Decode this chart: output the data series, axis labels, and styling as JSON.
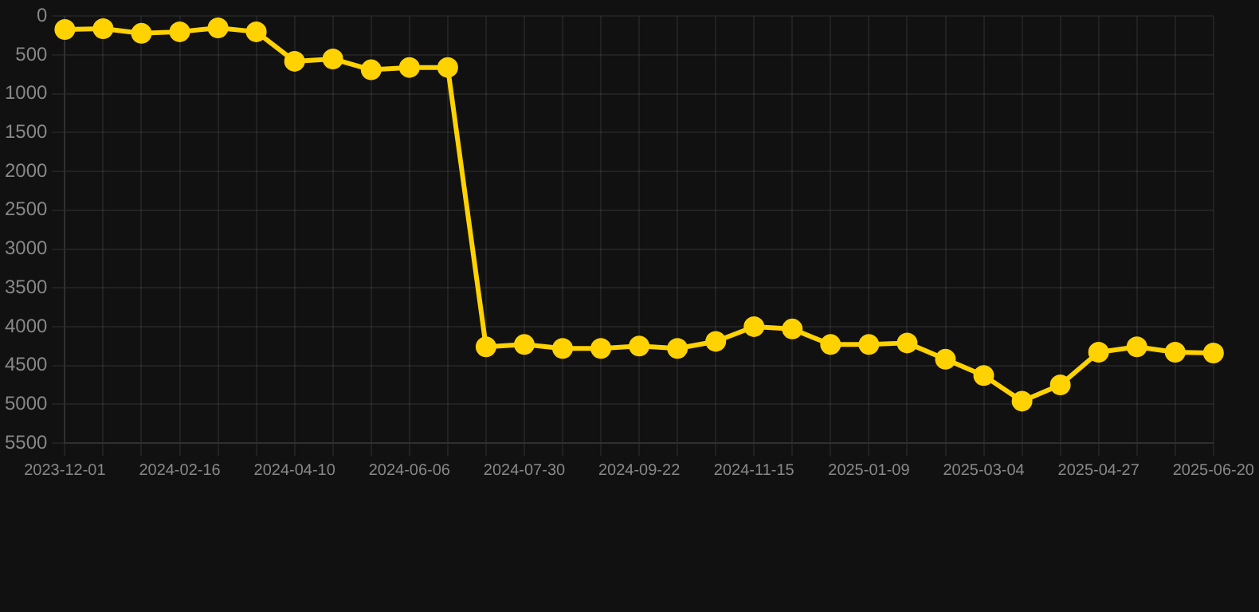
{
  "chart_data": {
    "type": "line",
    "categories": [
      "2023-12-01",
      null,
      null,
      "2024-02-16",
      null,
      null,
      "2024-04-10",
      null,
      null,
      "2024-06-06",
      null,
      null,
      "2024-07-30",
      null,
      null,
      "2024-09-22",
      null,
      null,
      "2024-11-15",
      null,
      null,
      "2025-01-09",
      null,
      null,
      "2025-03-04",
      null,
      null,
      "2025-04-27",
      null,
      null,
      "2025-06-20"
    ],
    "series": [
      {
        "color": "#ffd200",
        "values": [
          170,
          160,
          220,
          200,
          150,
          200,
          580,
          550,
          690,
          660,
          660,
          4260,
          4230,
          4280,
          4280,
          4250,
          4280,
          4190,
          4000,
          4030,
          4230,
          4230,
          4210,
          4420,
          4630,
          4960,
          4750,
          4330,
          4260,
          4330,
          4340
        ]
      }
    ],
    "ylim": [
      5500,
      0
    ],
    "yticks": [
      0,
      500,
      1000,
      1500,
      2000,
      2500,
      3000,
      3500,
      4000,
      4500,
      5000,
      5500
    ],
    "grid": true,
    "legend": false,
    "marker": "circle",
    "line_style": "solid"
  }
}
